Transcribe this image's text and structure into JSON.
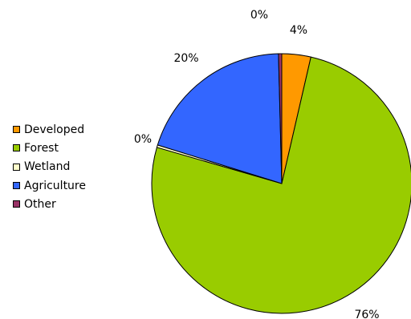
{
  "chart_data": {
    "type": "pie",
    "title": "",
    "categories": [
      "Developed",
      "Forest",
      "Wetland",
      "Agriculture",
      "Other"
    ],
    "values": [
      3.6,
      75.9,
      0.3,
      19.8,
      0.4
    ],
    "data_labels": [
      "4%",
      "76%",
      "0%",
      "20%",
      "0%"
    ],
    "colors": [
      "#ff9900",
      "#99cc00",
      "#ffffcc",
      "#3366ff",
      "#993366"
    ],
    "start": "12 o'clock",
    "direction": "clockwise",
    "legend": {
      "placement": "left",
      "order": [
        "Developed",
        "Forest",
        "Wetland",
        "Agriculture",
        "Other"
      ]
    }
  }
}
